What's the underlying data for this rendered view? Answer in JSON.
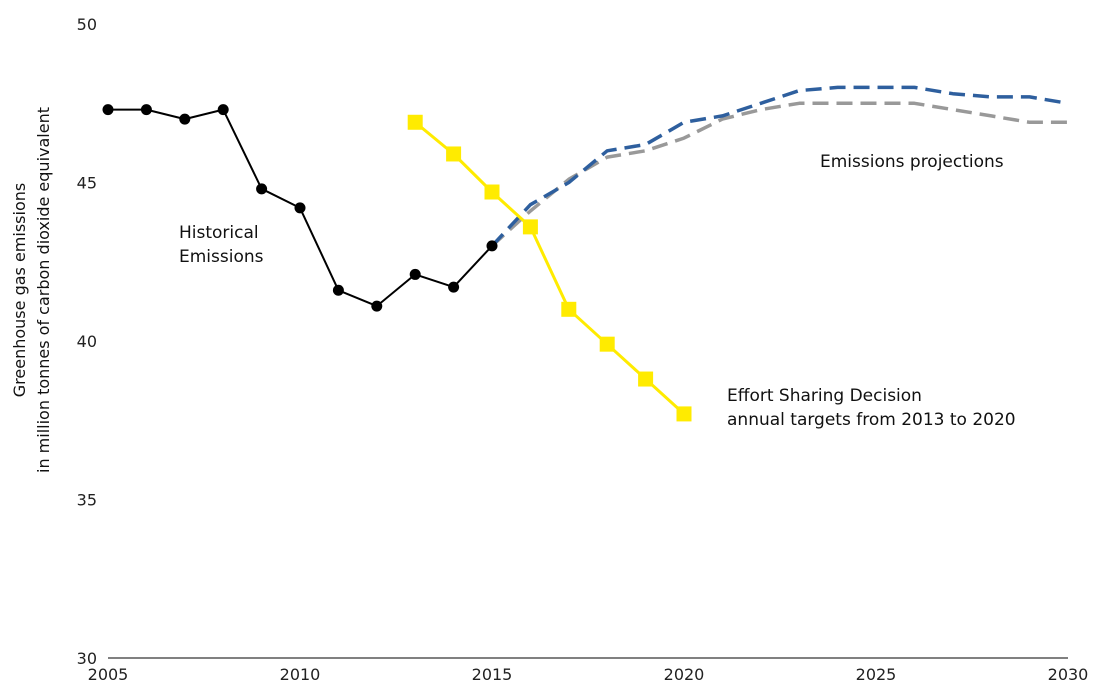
{
  "chart_data": {
    "type": "line",
    "ylabel": [
      "Greenhouse gas emissions",
      "in million tonnes of carbon dioxide equivalent"
    ],
    "xlim": [
      2005,
      2030
    ],
    "ylim": [
      30,
      50
    ],
    "x_ticks": [
      "2005",
      "2010",
      "2015",
      "2020",
      "2025",
      "2030"
    ],
    "y_ticks": [
      "30",
      "35",
      "40",
      "45",
      "50"
    ],
    "grid": false,
    "legend": "none",
    "series": [
      {
        "name": "Historical Emissions",
        "style": "solid-with-circles",
        "color": "#000000",
        "x": [
          2005,
          2006,
          2007,
          2008,
          2009,
          2010,
          2011,
          2012,
          2013,
          2014,
          2015
        ],
        "y": [
          47.3,
          47.3,
          47.0,
          47.3,
          44.8,
          44.2,
          41.6,
          41.1,
          42.1,
          41.7,
          43.0
        ]
      },
      {
        "name": "Effort Sharing Decision annual targets from 2013 to 2020",
        "style": "solid-with-squares",
        "color": "#ffeb00",
        "x": [
          2013,
          2014,
          2015,
          2016,
          2017,
          2018,
          2019,
          2020
        ],
        "y": [
          46.9,
          45.9,
          44.7,
          43.6,
          41.0,
          39.9,
          38.8,
          37.7
        ]
      },
      {
        "name": "Emissions projections",
        "style": "dashed",
        "color": "#2e5f9e",
        "x": [
          2015,
          2016,
          2017,
          2018,
          2019,
          2020,
          2021,
          2022,
          2023,
          2024,
          2025,
          2026,
          2027,
          2028,
          2029,
          2030
        ],
        "y": [
          43.0,
          44.3,
          45.0,
          46.0,
          46.2,
          46.9,
          47.1,
          47.5,
          47.9,
          48.0,
          48.0,
          48.0,
          47.8,
          47.7,
          47.7,
          47.5
        ]
      },
      {
        "name": "Emissions projections",
        "style": "dashed",
        "color": "#999999",
        "x": [
          2015,
          2016,
          2017,
          2018,
          2019,
          2020,
          2021,
          2022,
          2023,
          2024,
          2025,
          2026,
          2027,
          2028,
          2029,
          2030
        ],
        "y": [
          43.0,
          44.1,
          45.1,
          45.8,
          46.0,
          46.4,
          47.0,
          47.3,
          47.5,
          47.5,
          47.5,
          47.5,
          47.3,
          47.1,
          46.9,
          46.9
        ]
      }
    ],
    "annotations": {
      "historical": [
        "Historical",
        "Emissions"
      ],
      "projections": [
        "Emissions projections"
      ],
      "targets": [
        "Effort Sharing Decision",
        "annual targets from 2013 to 2020"
      ]
    }
  }
}
